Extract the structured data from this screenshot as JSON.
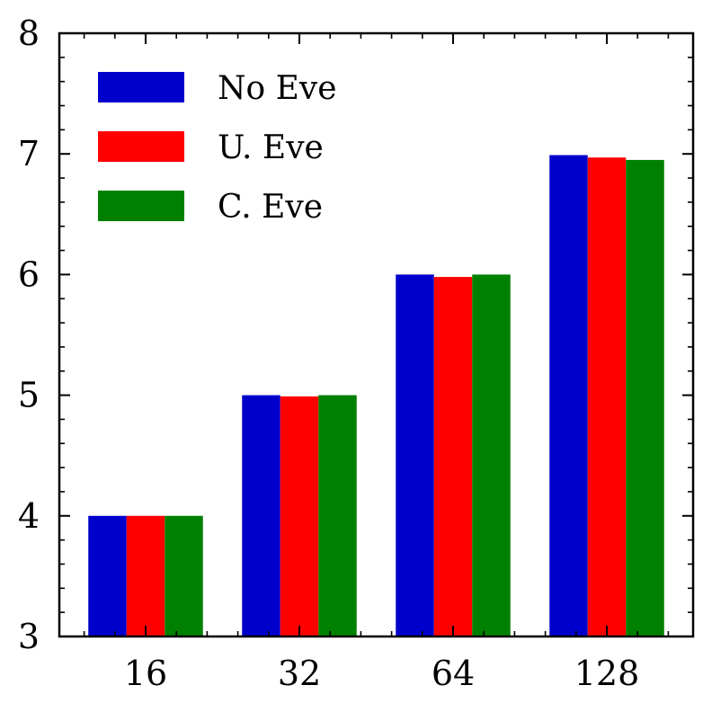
{
  "chart_data": {
    "type": "bar",
    "categories": [
      "16",
      "32",
      "64",
      "128"
    ],
    "series": [
      {
        "name": "No Eve",
        "color": "#0000cc",
        "values": [
          4.0,
          5.0,
          6.0,
          6.99
        ]
      },
      {
        "name": "U. Eve",
        "color": "#ff0000",
        "values": [
          4.0,
          4.99,
          5.98,
          6.97
        ]
      },
      {
        "name": "C. Eve",
        "color": "#008000",
        "values": [
          4.0,
          5.0,
          6.0,
          6.95
        ]
      }
    ],
    "title": "",
    "xlabel": "",
    "ylabel": "",
    "ylim": [
      3,
      8
    ],
    "yticks": [
      3,
      4,
      5,
      6,
      7,
      8
    ],
    "yminor_step": 0.2,
    "legend": "top-left",
    "grid": false
  }
}
